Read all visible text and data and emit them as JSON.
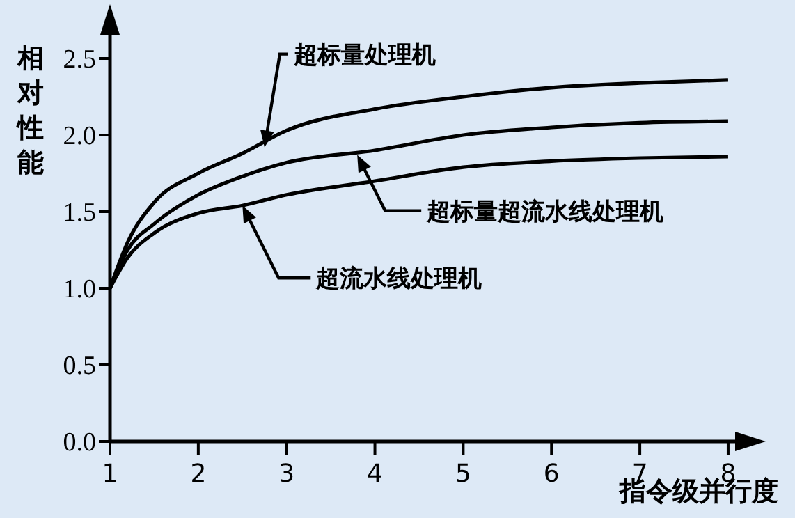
{
  "chart_data": {
    "type": "line",
    "xlabel": "指令级并行度",
    "ylabel": "相对性能",
    "x": [
      1,
      1.2,
      1.5,
      2,
      2.5,
      3,
      4,
      5,
      6,
      7,
      8
    ],
    "series": [
      {
        "color": "#000000",
        "values": [
          1.0,
          1.3,
          1.56,
          1.75,
          1.88,
          2.03,
          2.17,
          2.25,
          2.31,
          2.34,
          2.36
        ]
      },
      {
        "color": "#000000",
        "values": [
          1.0,
          1.25,
          1.42,
          1.61,
          1.73,
          1.82,
          1.9,
          2.0,
          2.05,
          2.08,
          2.09
        ]
      },
      {
        "color": "#000000",
        "values": [
          1.0,
          1.2,
          1.36,
          1.49,
          1.54,
          1.61,
          1.7,
          1.79,
          1.83,
          1.85,
          1.86
        ]
      }
    ],
    "xlim": [
      1,
      8.3
    ],
    "xticks": [
      1,
      2,
      3,
      4,
      5,
      6,
      7,
      8
    ],
    "ylim": [
      0,
      2.8
    ],
    "yticks": [
      {
        "value": 0,
        "label": "0.0"
      },
      0.5,
      {
        "value": 1,
        "label": "1.0"
      },
      1.5,
      {
        "value": 2,
        "label": "2.0"
      },
      2.5
    ],
    "annotations": [
      {
        "text": "超标量处理机",
        "x": 2.75,
        "y": 1.92
      },
      {
        "text": "超标量超流水线处理机",
        "x": 3.8,
        "y": 1.87
      },
      {
        "text": "超流水线处理机",
        "x": 2.5,
        "y": 1.54
      }
    ]
  }
}
